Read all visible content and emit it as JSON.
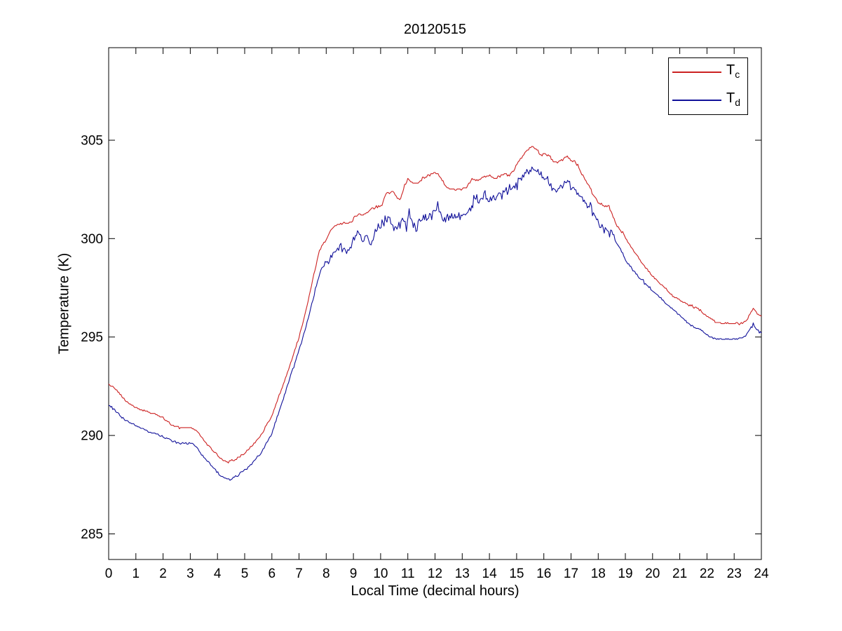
{
  "chart_data": {
    "type": "line",
    "title": "20120515",
    "xlabel": "Local Time (decimal hours)",
    "ylabel": "Temperature (K)",
    "xlim": [
      0,
      24
    ],
    "ylim": [
      283.7,
      309.7
    ],
    "xticks": [
      0,
      1,
      2,
      3,
      4,
      5,
      6,
      7,
      8,
      9,
      10,
      11,
      12,
      13,
      14,
      15,
      16,
      17,
      18,
      19,
      20,
      21,
      22,
      23,
      24
    ],
    "yticks": [
      285,
      290,
      295,
      300,
      305
    ],
    "grid": false,
    "legend_position": "top-right",
    "axis_color": "#000000",
    "background_color": "#ffffff",
    "series": [
      {
        "name": "T_c",
        "label_main": "T",
        "label_sub": "c",
        "color": "#cc2222",
        "quant": 0.06,
        "seed": 13,
        "noise": [
          [
            0,
            7.8,
            0.03
          ],
          [
            7.8,
            10.4,
            0.05
          ],
          [
            10.4,
            12.4,
            0.06
          ],
          [
            12.4,
            13.1,
            0.02
          ],
          [
            13.1,
            18.4,
            0.06
          ],
          [
            18.4,
            24,
            0.035
          ]
        ],
        "points": [
          [
            0,
            292.65
          ],
          [
            0.3,
            292.3
          ],
          [
            0.6,
            291.8
          ],
          [
            1,
            291.4
          ],
          [
            1.3,
            291.25
          ],
          [
            1.7,
            291.1
          ],
          [
            2,
            290.9
          ],
          [
            2.3,
            290.55
          ],
          [
            2.6,
            290.4
          ],
          [
            3,
            290.4
          ],
          [
            3.2,
            290.3
          ],
          [
            3.5,
            289.75
          ],
          [
            3.8,
            289.3
          ],
          [
            4.1,
            288.85
          ],
          [
            4.4,
            288.65
          ],
          [
            4.7,
            288.8
          ],
          [
            5,
            289.1
          ],
          [
            5.3,
            289.5
          ],
          [
            5.6,
            290
          ],
          [
            6,
            291
          ],
          [
            6.5,
            292.9
          ],
          [
            7,
            295
          ],
          [
            7.25,
            296.3
          ],
          [
            7.5,
            297.9
          ],
          [
            7.75,
            299.4
          ],
          [
            8,
            299.95
          ],
          [
            8.2,
            300.5
          ],
          [
            8.45,
            300.75
          ],
          [
            8.9,
            300.8
          ],
          [
            9.05,
            301.1
          ],
          [
            9.2,
            301.25
          ],
          [
            9.4,
            301.25
          ],
          [
            9.6,
            301.45
          ],
          [
            9.8,
            301.6
          ],
          [
            10.05,
            301.7
          ],
          [
            10.2,
            302.3
          ],
          [
            10.45,
            302.4
          ],
          [
            10.7,
            301.9
          ],
          [
            10.88,
            302.7
          ],
          [
            11,
            303.05
          ],
          [
            11.15,
            302.85
          ],
          [
            11.3,
            302.8
          ],
          [
            11.5,
            303
          ],
          [
            11.65,
            303.15
          ],
          [
            11.85,
            303.25
          ],
          [
            12,
            303.35
          ],
          [
            12.15,
            303.2
          ],
          [
            12.3,
            302.9
          ],
          [
            12.45,
            302.55
          ],
          [
            12.7,
            302.5
          ],
          [
            13,
            302.5
          ],
          [
            13.2,
            302.65
          ],
          [
            13.36,
            303
          ],
          [
            13.5,
            302.95
          ],
          [
            13.7,
            303.05
          ],
          [
            13.9,
            303.2
          ],
          [
            14.05,
            303.2
          ],
          [
            14.2,
            303.05
          ],
          [
            14.35,
            303.15
          ],
          [
            14.55,
            303.3
          ],
          [
            14.7,
            303.2
          ],
          [
            14.85,
            303.35
          ],
          [
            15.1,
            303.95
          ],
          [
            15.35,
            304.45
          ],
          [
            15.6,
            304.7
          ],
          [
            15.75,
            304.5
          ],
          [
            15.9,
            304.25
          ],
          [
            16.05,
            304.3
          ],
          [
            16.2,
            304.2
          ],
          [
            16.35,
            303.95
          ],
          [
            16.5,
            303.85
          ],
          [
            16.65,
            304
          ],
          [
            16.78,
            304.15
          ],
          [
            16.95,
            304.05
          ],
          [
            17.1,
            303.95
          ],
          [
            17.25,
            303.75
          ],
          [
            17.4,
            303.25
          ],
          [
            17.55,
            302.95
          ],
          [
            17.7,
            302.6
          ],
          [
            17.85,
            302.15
          ],
          [
            18,
            301.85
          ],
          [
            18.2,
            301.65
          ],
          [
            18.4,
            301.6
          ],
          [
            18.55,
            301.1
          ],
          [
            18.7,
            300.6
          ],
          [
            18.9,
            300.3
          ],
          [
            19.2,
            299.6
          ],
          [
            19.5,
            299
          ],
          [
            19.7,
            298.6
          ],
          [
            20,
            298.1
          ],
          [
            20.3,
            297.7
          ],
          [
            20.7,
            297.15
          ],
          [
            21,
            296.85
          ],
          [
            21.3,
            296.65
          ],
          [
            21.6,
            296.5
          ],
          [
            21.8,
            296.3
          ],
          [
            22,
            296.05
          ],
          [
            22.3,
            295.8
          ],
          [
            22.6,
            295.7
          ],
          [
            23,
            295.7
          ],
          [
            23.3,
            295.7
          ],
          [
            23.5,
            295.95
          ],
          [
            23.7,
            296.45
          ],
          [
            23.85,
            296.2
          ],
          [
            24,
            296.05
          ]
        ]
      },
      {
        "name": "T_d",
        "label_main": "T",
        "label_sub": "d",
        "color": "#101099",
        "quant": 0.04,
        "seed": 77,
        "noise": [
          [
            0,
            6.2,
            0.045
          ],
          [
            6.2,
            7.9,
            0.06
          ],
          [
            7.9,
            18.6,
            0.19
          ],
          [
            18.6,
            20,
            0.07
          ],
          [
            20,
            23.35,
            0.03
          ],
          [
            23.35,
            24,
            0.05
          ]
        ],
        "points": [
          [
            0,
            291.55
          ],
          [
            0.3,
            291.2
          ],
          [
            0.6,
            290.8
          ],
          [
            1,
            290.5
          ],
          [
            1.3,
            290.3
          ],
          [
            1.7,
            290.1
          ],
          [
            2,
            289.95
          ],
          [
            2.3,
            289.75
          ],
          [
            2.6,
            289.6
          ],
          [
            3,
            289.6
          ],
          [
            3.2,
            289.45
          ],
          [
            3.5,
            288.9
          ],
          [
            3.8,
            288.45
          ],
          [
            4.1,
            288
          ],
          [
            4.3,
            287.8
          ],
          [
            4.5,
            287.75
          ],
          [
            4.75,
            288
          ],
          [
            5,
            288.25
          ],
          [
            5.3,
            288.6
          ],
          [
            5.6,
            289.1
          ],
          [
            6,
            290.1
          ],
          [
            6.5,
            292.2
          ],
          [
            7,
            294.3
          ],
          [
            7.3,
            295.8
          ],
          [
            7.6,
            297.4
          ],
          [
            7.8,
            298.4
          ],
          [
            8,
            298.85
          ],
          [
            8.25,
            299.2
          ],
          [
            8.5,
            299.5
          ],
          [
            8.75,
            299.35
          ],
          [
            9,
            300
          ],
          [
            9.15,
            300.3
          ],
          [
            9.3,
            299.9
          ],
          [
            9.55,
            300
          ],
          [
            9.65,
            299.6
          ],
          [
            9.8,
            300.3
          ],
          [
            9.95,
            300.6
          ],
          [
            10.05,
            300.8
          ],
          [
            10.2,
            301
          ],
          [
            10.3,
            301.1
          ],
          [
            10.45,
            300.7
          ],
          [
            10.6,
            300.6
          ],
          [
            10.75,
            300.8
          ],
          [
            10.85,
            301.1
          ],
          [
            10.95,
            300.5
          ],
          [
            11.05,
            301.3
          ],
          [
            11.2,
            300.7
          ],
          [
            11.3,
            300.45
          ],
          [
            11.5,
            300.9
          ],
          [
            11.65,
            301.2
          ],
          [
            11.8,
            301.1
          ],
          [
            12,
            301.4
          ],
          [
            12.1,
            301.7
          ],
          [
            12.2,
            301.2
          ],
          [
            12.35,
            300.9
          ],
          [
            12.5,
            301
          ],
          [
            12.65,
            301.15
          ],
          [
            12.8,
            301.1
          ],
          [
            13,
            301.2
          ],
          [
            13.2,
            301.4
          ],
          [
            13.35,
            301.6
          ],
          [
            13.5,
            302.2
          ],
          [
            13.65,
            301.8
          ],
          [
            13.8,
            302.3
          ],
          [
            14,
            302
          ],
          [
            14.15,
            302.1
          ],
          [
            14.3,
            302.2
          ],
          [
            14.5,
            302.3
          ],
          [
            14.7,
            302.5
          ],
          [
            14.9,
            302.6
          ],
          [
            15.1,
            302.9
          ],
          [
            15.3,
            303.2
          ],
          [
            15.45,
            303.4
          ],
          [
            15.6,
            303.5
          ],
          [
            15.75,
            303.4
          ],
          [
            15.9,
            303.15
          ],
          [
            16.1,
            302.9
          ],
          [
            16.3,
            302.65
          ],
          [
            16.5,
            302.45
          ],
          [
            16.65,
            302.6
          ],
          [
            16.8,
            302.9
          ],
          [
            16.95,
            302.75
          ],
          [
            17.1,
            302.6
          ],
          [
            17.3,
            302.25
          ],
          [
            17.45,
            302
          ],
          [
            17.6,
            301.75
          ],
          [
            17.75,
            301.5
          ],
          [
            17.9,
            301.1
          ],
          [
            18.1,
            300.6
          ],
          [
            18.3,
            300.4
          ],
          [
            18.5,
            300.2
          ],
          [
            18.7,
            299.7
          ],
          [
            18.9,
            299.2
          ],
          [
            19.2,
            298.5
          ],
          [
            19.5,
            298.05
          ],
          [
            19.9,
            297.5
          ],
          [
            20.2,
            297.1
          ],
          [
            20.5,
            296.7
          ],
          [
            20.75,
            296.4
          ],
          [
            21,
            296.1
          ],
          [
            21.3,
            295.7
          ],
          [
            21.6,
            295.45
          ],
          [
            21.8,
            295.35
          ],
          [
            22.1,
            295
          ],
          [
            22.4,
            294.9
          ],
          [
            22.7,
            294.9
          ],
          [
            23,
            294.9
          ],
          [
            23.3,
            294.95
          ],
          [
            23.5,
            295.2
          ],
          [
            23.7,
            295.65
          ],
          [
            23.85,
            295.35
          ],
          [
            24,
            295.2
          ]
        ]
      }
    ]
  }
}
